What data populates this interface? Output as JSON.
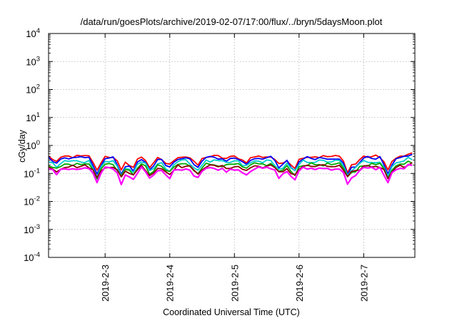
{
  "chart_data": {
    "type": "line",
    "title": "/data/run/goesPlots/archive/2019-02-07/17:00/flux/../bryn/5daysMoon.plot",
    "xlabel": "Coordinated Universal Time (UTC)",
    "ylabel": "cGy/day",
    "yscale": "log",
    "ylim": [
      0.0001,
      10000
    ],
    "xlim": [
      "2019-02-02T03:00",
      "2019-02-07T19:00"
    ],
    "grid": true,
    "legend": "none",
    "y_ticks": [
      {
        "value": 0.0001,
        "base": "10",
        "exp": "-4"
      },
      {
        "value": 0.001,
        "base": "10",
        "exp": "-3"
      },
      {
        "value": 0.01,
        "base": "10",
        "exp": "-2"
      },
      {
        "value": 0.1,
        "base": "10",
        "exp": "-1"
      },
      {
        "value": 1,
        "base": "10",
        "exp": "0"
      },
      {
        "value": 10,
        "base": "10",
        "exp": "1"
      },
      {
        "value": 100,
        "base": "10",
        "exp": "2"
      },
      {
        "value": 1000,
        "base": "10",
        "exp": "3"
      },
      {
        "value": 10000,
        "base": "10",
        "exp": "4"
      }
    ],
    "x_ticks": [
      {
        "value": "2019-02-03T00:00",
        "label": "2019-2-3"
      },
      {
        "value": "2019-02-04T00:00",
        "label": "2019-2-4"
      },
      {
        "value": "2019-02-05T00:00",
        "label": "2019-2-5"
      },
      {
        "value": "2019-02-06T00:00",
        "label": "2019-2-6"
      },
      {
        "value": "2019-02-07T00:00",
        "label": "2019-2-7"
      }
    ],
    "series": [
      {
        "color": "#ff0000",
        "base": 0.4,
        "dip_factor": 1.0
      },
      {
        "color": "#0000ff",
        "base": 0.36,
        "dip_factor": 1.2
      },
      {
        "color": "#00cccc",
        "base": 0.27,
        "dip_factor": 1.0
      },
      {
        "color": "#00aa00",
        "base": 0.21,
        "dip_factor": 0.9
      },
      {
        "color": "#8b0000",
        "base": 0.18,
        "dip_factor": 0.8
      },
      {
        "color": "#ff00ff",
        "base": 0.15,
        "dip_factor": 1.0
      }
    ],
    "dips": [
      {
        "x": "2019-02-02T06:00",
        "depth": 0.35
      },
      {
        "x": "2019-02-02T21:00",
        "depth": 0.7
      },
      {
        "x": "2019-02-03T06:00",
        "depth": 0.7
      },
      {
        "x": "2019-02-03T10:00",
        "depth": 0.7
      },
      {
        "x": "2019-02-03T17:00",
        "depth": 0.7
      },
      {
        "x": "2019-02-03T22:00",
        "depth": 0.3
      },
      {
        "x": "2019-02-04T00:00",
        "depth": 0.45
      },
      {
        "x": "2019-02-04T10:00",
        "depth": 0.6
      },
      {
        "x": "2019-02-04T21:00",
        "depth": 0.15
      },
      {
        "x": "2019-02-05T04:00",
        "depth": 0.4
      },
      {
        "x": "2019-02-05T17:00",
        "depth": 0.6
      },
      {
        "x": "2019-02-05T22:00",
        "depth": 0.7
      },
      {
        "x": "2019-02-06T18:00",
        "depth": 0.7
      },
      {
        "x": "2019-02-06T21:00",
        "depth": 0.45
      },
      {
        "x": "2019-02-07T09:00",
        "depth": 0.7
      }
    ]
  }
}
